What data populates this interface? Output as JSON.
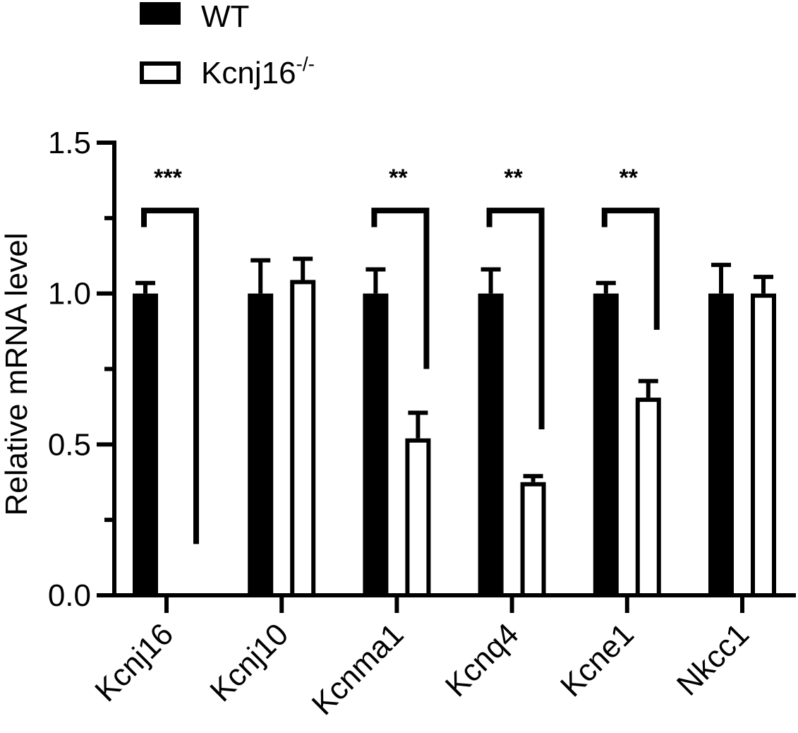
{
  "chart_data": {
    "type": "bar",
    "title": "",
    "xlabel": "",
    "ylabel": "Relative mRNA level",
    "ylim": [
      0,
      1.5
    ],
    "yticks": [
      0.0,
      0.5,
      1.0,
      1.5
    ],
    "ytick_labels": [
      "0.0",
      "0.5",
      "1.0",
      "1.5"
    ],
    "yminor_ticks": [
      0.25,
      0.75,
      1.25
    ],
    "categories": [
      "Kcnj16",
      "Kcnj10",
      "Kcnma1",
      "Kcnq4",
      "Kcne1",
      "Nkcc1"
    ],
    "series": [
      {
        "name": "WT",
        "fill": "filled",
        "values": [
          1.0,
          1.0,
          1.0,
          1.0,
          1.0,
          1.0
        ],
        "errors": [
          0.035,
          0.11,
          0.08,
          0.08,
          0.035,
          0.095
        ]
      },
      {
        "name": "Kcnj16",
        "name_superscript": "-/-",
        "fill": "open",
        "values": [
          0.0,
          1.045,
          0.52,
          0.375,
          0.655,
          1.0
        ],
        "errors": [
          0.0,
          0.07,
          0.085,
          0.02,
          0.055,
          0.055
        ]
      }
    ],
    "significance": [
      {
        "category": "Kcnj16",
        "label": "***",
        "right_end": 0.17
      },
      {
        "category": "Kcnma1",
        "label": "**",
        "right_end": 0.75
      },
      {
        "category": "Kcnq4",
        "label": "**",
        "right_end": 0.55
      },
      {
        "category": "Kcne1",
        "label": "**",
        "right_end": 0.88
      }
    ],
    "grid": false,
    "legend_position": "top-left",
    "colors": {
      "filled": "#000000",
      "open": "#ffffff",
      "stroke": "#000000"
    }
  }
}
